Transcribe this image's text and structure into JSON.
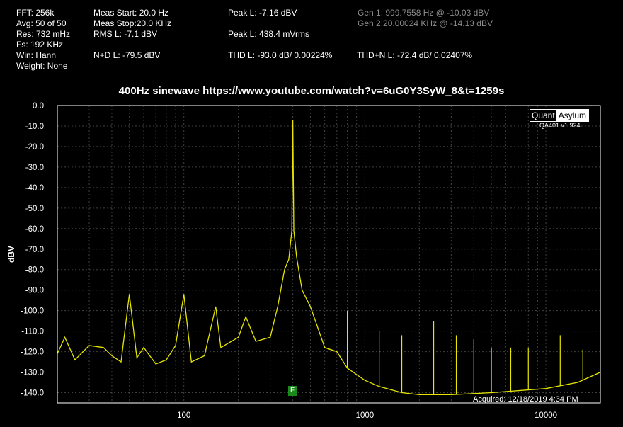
{
  "info": {
    "fft": "FFT: 256k",
    "avg": "Avg: 50 of 50",
    "res": "Res: 732 mHz",
    "fs": "Fs: 192 KHz",
    "win": "Win: Hann",
    "weight": "Weight: None",
    "meas_start": "Meas Start: 20.0 Hz",
    "meas_stop": "Meas Stop:20.0 KHz",
    "rms": "RMS L: -7.1 dBV",
    "nd": "N+D L: -79.5 dBV",
    "peak_l": "Peak L: -7.16 dBV",
    "peak_l_mv": "Peak L: 438.4 mVrms",
    "thd": "THD L: -93.0 dB/ 0.00224%",
    "thdn": "THD+N L: -72.4 dB/ 0.02407%",
    "gen1": "Gen 1: 999.7558 Hz @ -10.03  dBV",
    "gen2": "Gen 2:20.00024 KHz @ -14.13  dBV"
  },
  "logo": {
    "part1": "Quant",
    "part2": "Asylum",
    "version": "QA401 v1.924"
  },
  "acquired": "Acquired: 12/18/2019  4:34 PM",
  "marker": "F",
  "colors": {
    "trace": "#e6e600",
    "grid": "#404040",
    "frame": "#ffffff",
    "marker": "#1a8a1a"
  },
  "chart_data": {
    "type": "line",
    "title": "400Hz sinewave https://www.youtube.com/watch?v=6uG0Y3SyW_8&t=1259s",
    "xlabel": "",
    "ylabel": "dBV",
    "x_scale": "log",
    "xlim": [
      20,
      20000
    ],
    "ylim": [
      -145,
      0
    ],
    "grid": true,
    "y_ticks": [
      0,
      -10,
      -20,
      -30,
      -40,
      -50,
      -60,
      -70,
      -80,
      -90,
      -100,
      -110,
      -120,
      -130,
      -140
    ],
    "y_tick_labels": [
      "0.0",
      "-10.0",
      "-20.0",
      "-30.0",
      "-40.0",
      "-50.0",
      "-60.0",
      "-70.0",
      "-80.0",
      "-90.0",
      "-100.0",
      "-110.0",
      "-120.0",
      "-130.0",
      "-140.0"
    ],
    "x_ticks": [
      100,
      1000,
      10000
    ],
    "x_tick_labels": [
      "100",
      "1000",
      "10000"
    ],
    "series": [
      {
        "values": [
          [
            20,
            -121
          ],
          [
            22,
            -113
          ],
          [
            25,
            -124
          ],
          [
            30,
            -117
          ],
          [
            36,
            -118
          ],
          [
            40,
            -122
          ],
          [
            45,
            -125
          ],
          [
            50,
            -92
          ],
          [
            55,
            -123
          ],
          [
            60,
            -118
          ],
          [
            70,
            -126
          ],
          [
            80,
            -124
          ],
          [
            90,
            -117
          ],
          [
            100,
            -92
          ],
          [
            110,
            -125
          ],
          [
            130,
            -122
          ],
          [
            150,
            -98
          ],
          [
            160,
            -118
          ],
          [
            200,
            -113
          ],
          [
            220,
            -103
          ],
          [
            250,
            -115
          ],
          [
            300,
            -113
          ],
          [
            330,
            -98
          ],
          [
            360,
            -80
          ],
          [
            380,
            -75
          ],
          [
            395,
            -61
          ],
          [
            400,
            -7
          ],
          [
            405,
            -61
          ],
          [
            420,
            -74
          ],
          [
            450,
            -90
          ],
          [
            500,
            -98
          ],
          [
            600,
            -118
          ],
          [
            700,
            -120
          ],
          [
            800,
            -128
          ],
          [
            1000,
            -134
          ],
          [
            1200,
            -137
          ],
          [
            1600,
            -140
          ],
          [
            2000,
            -141
          ],
          [
            3000,
            -141
          ],
          [
            5000,
            -140
          ],
          [
            10000,
            -138
          ],
          [
            15000,
            -135
          ],
          [
            20000,
            -130
          ]
        ]
      }
    ],
    "spikes": [
      [
        390,
        -66
      ],
      [
        410,
        -64
      ],
      [
        800,
        -100
      ],
      [
        1200,
        -110
      ],
      [
        1600,
        -112
      ],
      [
        2400,
        -105
      ],
      [
        3200,
        -112
      ],
      [
        4000,
        -114
      ],
      [
        5000,
        -118
      ],
      [
        6400,
        -118
      ],
      [
        8000,
        -118
      ],
      [
        12000,
        -112
      ],
      [
        16000,
        -119
      ]
    ]
  }
}
